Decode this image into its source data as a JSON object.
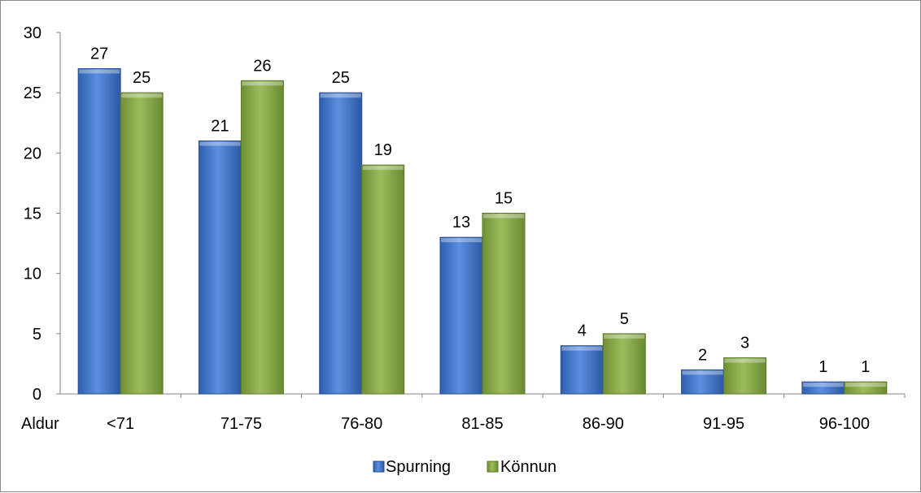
{
  "chart_data": {
    "type": "bar",
    "title": "",
    "xlabel": "Aldur",
    "ylabel": "",
    "categories": [
      "<71",
      "71-75",
      "76-80",
      "81-85",
      "86-90",
      "91-95",
      "96-100"
    ],
    "series": [
      {
        "name": "Spurning",
        "values": [
          27,
          21,
          25,
          13,
          4,
          2,
          1
        ],
        "color": "#3f72c8"
      },
      {
        "name": "Könnun",
        "values": [
          25,
          26,
          19,
          15,
          5,
          3,
          1
        ],
        "color": "#8aaa46"
      }
    ],
    "ylim": [
      0,
      30
    ],
    "yticks": [
      0,
      5,
      10,
      15,
      20,
      25,
      30
    ],
    "grid": false,
    "legend_position": "bottom"
  }
}
